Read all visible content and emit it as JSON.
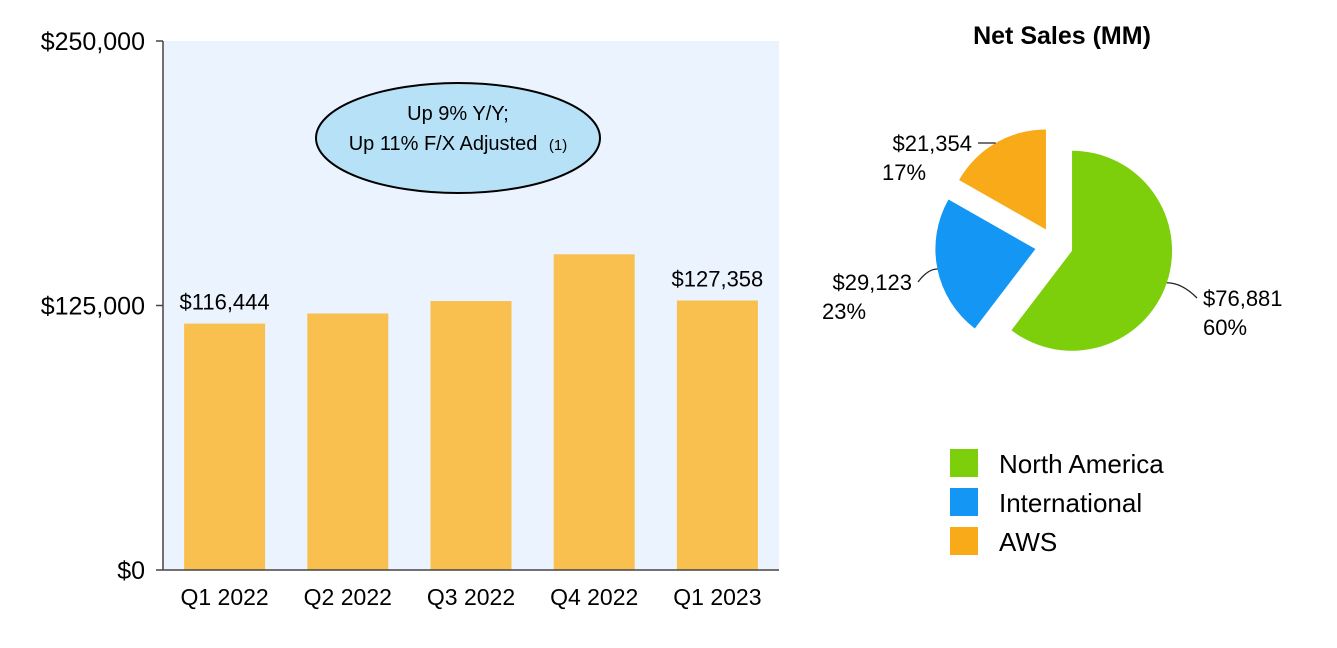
{
  "chart_data": [
    {
      "type": "bar",
      "categories": [
        "Q1 2022",
        "Q2 2022",
        "Q3 2022",
        "Q4 2022",
        "Q1 2023"
      ],
      "values": [
        116444,
        121234,
        127101,
        149204,
        127358
      ],
      "data_labels": [
        "$116,444",
        "",
        "",
        "",
        "$127,358"
      ],
      "yticks": [
        {
          "value": 0,
          "label": "$0"
        },
        {
          "value": 125000,
          "label": "$125,000"
        },
        {
          "value": 250000,
          "label": "$250,000"
        }
      ],
      "ylim": [
        0,
        250000
      ],
      "grid": false,
      "bar_color": "#f9c04f",
      "plot_background": "#ebf3ff",
      "annotation": {
        "line1": "Up 9% Y/Y;",
        "line2": "Up 11% F/X Adjusted",
        "footnote": "(1)"
      }
    },
    {
      "type": "pie",
      "title": "Net Sales (MM)",
      "slices": [
        {
          "name": "North America",
          "value": 76881,
          "value_label": "$76,881",
          "pct_label": "60%",
          "color": "#7ccf0a"
        },
        {
          "name": "International",
          "value": 29123,
          "value_label": "$29,123",
          "pct_label": "23%",
          "color": "#1496f4"
        },
        {
          "name": "AWS",
          "value": 21354,
          "value_label": "$21,354",
          "pct_label": "17%",
          "color": "#f8aa18"
        }
      ],
      "legend_position": "bottom"
    }
  ]
}
